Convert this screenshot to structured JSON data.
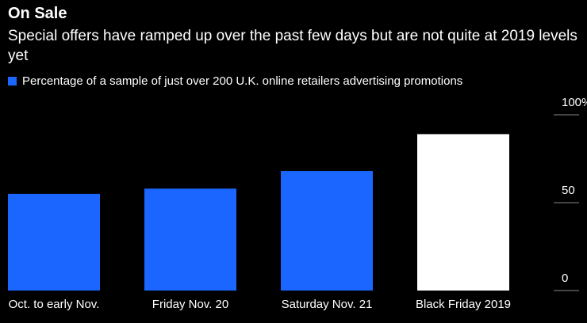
{
  "chart_data": {
    "type": "bar",
    "title": "On Sale",
    "subtitle": "Special offers have ramped up over the past few days but are not quite at 2019 levels yet",
    "categories": [
      "Oct. to early Nov.",
      "Friday Nov. 20",
      "Saturday Nov. 21",
      "Black Friday 2019"
    ],
    "series": [
      {
        "name": "Percentage of a sample of just over 200 U.K. online retailers advertising promotions",
        "color": "#1a66ff",
        "values": [
          55,
          58,
          68,
          89
        ]
      }
    ],
    "bar_colors": [
      "#1a66ff",
      "#1a66ff",
      "#1a66ff",
      "#ffffff"
    ],
    "ylim": [
      0,
      100
    ],
    "yticks": [
      0,
      50,
      {
        "value": 100,
        "label": "100%"
      }
    ]
  }
}
